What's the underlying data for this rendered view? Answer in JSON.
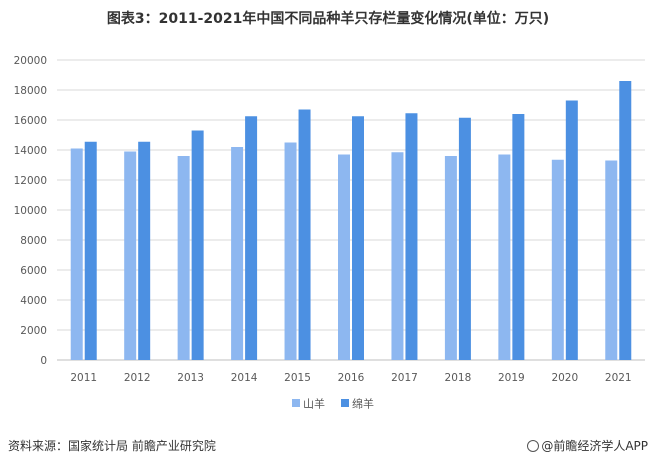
{
  "title": "图表3：2011-2021年中国不同品种羊只存栏量变化情况(单位：万只)",
  "footer": {
    "source": "资料来源：国家统计局 前瞻产业研究院",
    "brand": "@前瞻经济学人APP"
  },
  "colors": {
    "series_1": "#8DB7F0",
    "series_2": "#4C90E2",
    "grid": "#D9D9D9",
    "axis": "#BFBFBF"
  },
  "chart_data": {
    "type": "bar",
    "categories": [
      "2011",
      "2012",
      "2013",
      "2014",
      "2015",
      "2016",
      "2017",
      "2018",
      "2019",
      "2020",
      "2021"
    ],
    "series": [
      {
        "name": "山羊",
        "values": [
          14100,
          13900,
          13600,
          14200,
          14500,
          13700,
          13850,
          13600,
          13700,
          13350,
          13300
        ]
      },
      {
        "name": "绵羊",
        "values": [
          14550,
          14550,
          15300,
          16250,
          16700,
          16250,
          16450,
          16150,
          16400,
          17300,
          18600
        ]
      }
    ],
    "ylim": [
      0,
      20000
    ],
    "yticks": [
      "0",
      "2000",
      "4000",
      "6000",
      "8000",
      "10000",
      "12000",
      "14000",
      "16000",
      "18000",
      "20000"
    ],
    "grid": true,
    "legend_position": "bottom"
  }
}
